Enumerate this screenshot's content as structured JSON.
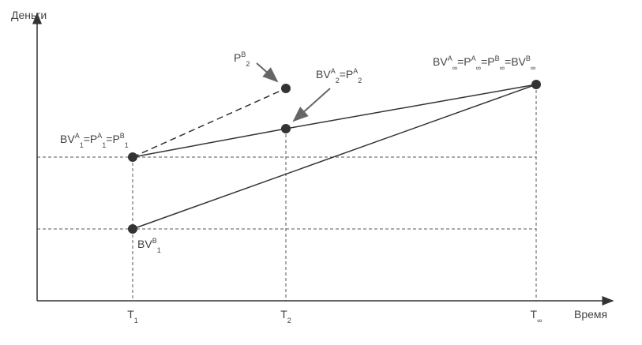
{
  "axes": {
    "y_label": "Деньги",
    "x_label": "Время"
  },
  "ticks": [
    [
      {
        "base": "T",
        "sub": "1"
      }
    ],
    [
      {
        "base": "T",
        "sub": "2"
      }
    ],
    [
      {
        "base": "T",
        "sub": "∞"
      }
    ]
  ],
  "points": [
    {
      "label": [
        {
          "base": "BV",
          "sup": "A",
          "sub": "1"
        },
        {
          "base": "=P",
          "sup": "A",
          "sub": "1"
        },
        {
          "base": "=P",
          "sup": "B",
          "sub": "1"
        }
      ]
    },
    {
      "label": [
        {
          "base": "BV",
          "sup": "B",
          "sub": "1"
        }
      ]
    },
    {
      "label": [
        {
          "base": "BV",
          "sup": "A",
          "sub": "2"
        },
        {
          "base": "=P",
          "sup": "A",
          "sub": "2"
        }
      ]
    },
    {
      "label": [
        {
          "base": "P",
          "sup": "B",
          "sub": "2"
        }
      ]
    },
    {
      "label": [
        {
          "base": "BV",
          "sup": "A",
          "sub": "∞"
        },
        {
          "base": "=P",
          "sup": "A",
          "sub": "∞"
        },
        {
          "base": "=P",
          "sup": "B",
          "sub": "∞"
        },
        {
          "base": "=BV",
          "sup": "B",
          "sub": "∞"
        }
      ]
    }
  ]
}
